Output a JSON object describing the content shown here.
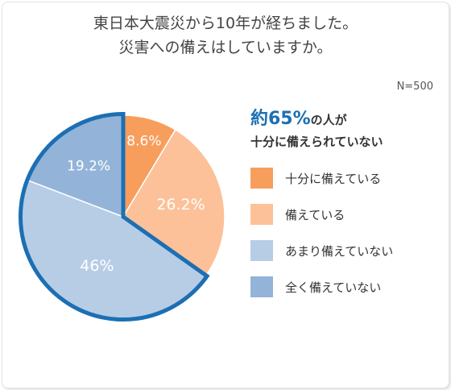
{
  "title_lines": [
    "東日本大震災から10年が経ちました。",
    "災害への備えはしていますか。"
  ],
  "sample_size": "N=500",
  "headline": {
    "highlight": "約65%",
    "rest": "の人が",
    "line2": "十分に備えられていない"
  },
  "colors": {
    "highlight_border": "#1c6fb3",
    "slice_separator": "#ffffff"
  },
  "chart_data": {
    "type": "pie",
    "unit": "%",
    "highlighted": [
      "あまり備えていない",
      "全く備えていない"
    ],
    "slices": [
      {
        "label": "十分に備えている",
        "value": 8.6,
        "display": "8.6%",
        "color": "#f79e5d"
      },
      {
        "label": "備えている",
        "value": 26.2,
        "display": "26.2%",
        "color": "#fcc198"
      },
      {
        "label": "あまり備えていない",
        "value": 46,
        "display": "46%",
        "color": "#b7cde6"
      },
      {
        "label": "全く備えていない",
        "value": 19.2,
        "display": "19.2%",
        "color": "#93b4d8"
      }
    ],
    "legend": [
      "十分に備えている",
      "備えている",
      "あまり備えていない",
      "全く備えていない"
    ]
  }
}
